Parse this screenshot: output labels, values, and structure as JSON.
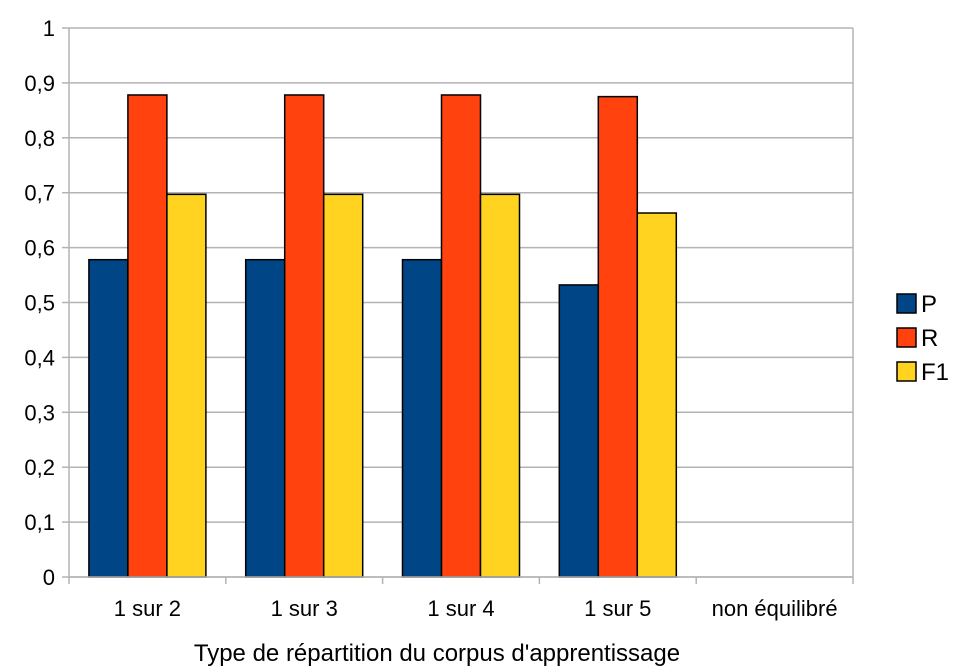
{
  "chart_data": {
    "type": "bar",
    "categories": [
      "1 sur 2",
      "1 sur 3",
      "1 sur 4",
      "1 sur 5",
      "non équilibré"
    ],
    "series": [
      {
        "name": "P",
        "color": "#004586",
        "values": [
          0.578,
          0.578,
          0.578,
          0.532,
          null
        ]
      },
      {
        "name": "R",
        "color": "#ff420e",
        "values": [
          0.878,
          0.878,
          0.878,
          0.875,
          null
        ]
      },
      {
        "name": "F1",
        "color": "#ffd320",
        "values": [
          0.697,
          0.697,
          0.697,
          0.663,
          null
        ]
      }
    ],
    "title": "",
    "xlabel": "Type de répartition du corpus d'apprentissage",
    "ylabel": "",
    "ylim": [
      0,
      1
    ],
    "yticks": [
      "0",
      "0,1",
      "0,2",
      "0,3",
      "0,4",
      "0,5",
      "0,6",
      "0,7",
      "0,8",
      "0,9",
      "1"
    ],
    "grid": true,
    "legend_position": "right"
  }
}
